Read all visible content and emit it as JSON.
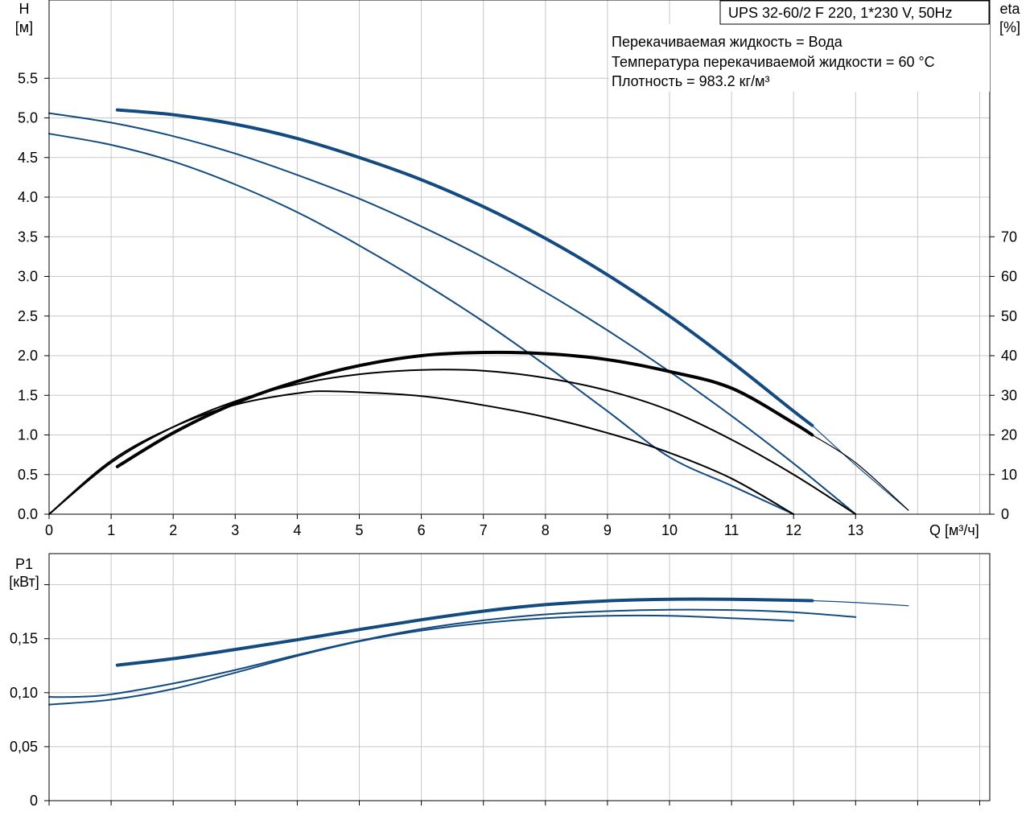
{
  "header": {
    "model": "UPS 32-60/2 F 220, 1*230 V, 50Hz",
    "info_lines": [
      "Перекачиваемая жидкость = Вода",
      "Температура перекачиваемой жидкости = 60 °C",
      "Плотность = 983.2 кг/м³"
    ]
  },
  "colors": {
    "pump": "#134a80",
    "eff": "#000000",
    "grid": "#c8c8c8"
  },
  "chart_data": [
    {
      "type": "line",
      "title": "",
      "xlabel": "Q [м³/ч]",
      "ylabel_name": "H",
      "ylabel_unit": "[м]",
      "y2label_name": "eta",
      "y2label_unit": "[%]",
      "xlim": [
        0,
        14.2
      ],
      "ylim": [
        0,
        6.0
      ],
      "y2lim": [
        0,
        120
      ],
      "grid": true,
      "x_ticks": [
        "0",
        "1",
        "2",
        "3",
        "4",
        "5",
        "6",
        "7",
        "8",
        "9",
        "10",
        "11",
        "12",
        "13"
      ],
      "y_ticks": [
        "0.0",
        "0.5",
        "1.0",
        "1.5",
        "2.0",
        "2.5",
        "3.0",
        "3.5",
        "4.0",
        "4.5",
        "5.0",
        "5.5"
      ],
      "y2_ticks": [
        "0",
        "10",
        "20",
        "30",
        "40",
        "50",
        "60",
        "70"
      ],
      "series": [
        {
          "kind": "head",
          "role": "main",
          "x": [
            1.1,
            2,
            3,
            4,
            5,
            6,
            7,
            8,
            9,
            10,
            11,
            12,
            12.3
          ],
          "y": [
            5.1,
            5.04,
            4.92,
            4.74,
            4.5,
            4.22,
            3.88,
            3.48,
            3.02,
            2.5,
            1.92,
            1.3,
            1.12
          ]
        },
        {
          "kind": "head",
          "role": "ext",
          "x": [
            12.3,
            13,
            13.85
          ],
          "y": [
            1.12,
            0.62,
            0.05
          ]
        },
        {
          "kind": "head",
          "role": "thin",
          "x": [
            0,
            1,
            2,
            3,
            4,
            5,
            6,
            7,
            8,
            9,
            10,
            11,
            12,
            13
          ],
          "y": [
            5.06,
            4.94,
            4.77,
            4.55,
            4.28,
            3.98,
            3.63,
            3.24,
            2.8,
            2.32,
            1.8,
            1.24,
            0.64,
            0.0
          ]
        },
        {
          "kind": "head",
          "role": "thin",
          "x": [
            0,
            1,
            2,
            3,
            4,
            5,
            6,
            7,
            8,
            9,
            10,
            11,
            12
          ],
          "y": [
            4.8,
            4.66,
            4.45,
            4.16,
            3.81,
            3.39,
            2.93,
            2.43,
            1.88,
            1.3,
            0.72,
            0.36,
            0.0
          ]
        },
        {
          "kind": "eta",
          "role": "main",
          "x": [
            1.1,
            2,
            3,
            4,
            5,
            6,
            7,
            8,
            9,
            10,
            11,
            12,
            12.3
          ],
          "y": [
            12,
            20.5,
            28,
            33.5,
            37.5,
            40,
            40.8,
            40.5,
            39,
            36,
            31.8,
            23,
            20
          ]
        },
        {
          "kind": "eta",
          "role": "ext",
          "x": [
            12.3,
            13,
            13.85
          ],
          "y": [
            20,
            13,
            1
          ]
        },
        {
          "kind": "eta",
          "role": "thin",
          "x": [
            0,
            1,
            2,
            3,
            4,
            5,
            6,
            7,
            8,
            9,
            10,
            11,
            12,
            13
          ],
          "y": [
            0,
            13,
            22,
            28.5,
            32.8,
            35.3,
            36.4,
            36.2,
            34.4,
            31.2,
            26.2,
            18.8,
            10,
            0
          ]
        },
        {
          "kind": "eta",
          "role": "thin",
          "x": [
            0,
            1,
            2,
            3,
            4,
            4.6,
            6,
            7,
            8,
            9,
            10,
            11,
            12
          ],
          "y": [
            0,
            13.5,
            22,
            27.6,
            30.5,
            31,
            29.8,
            27.5,
            24.5,
            20.5,
            15.5,
            9,
            0
          ]
        }
      ]
    },
    {
      "type": "line",
      "title": "",
      "xlabel": "",
      "ylabel_name": "P1",
      "ylabel_unit": "[кВт]",
      "xlim": [
        0,
        14.2
      ],
      "ylim": [
        0,
        0.2
      ],
      "grid": true,
      "y_ticks": [
        "0",
        "0,05",
        "0,10",
        "0,15"
      ],
      "series": [
        {
          "kind": "power",
          "role": "main",
          "x": [
            1.1,
            2,
            3,
            4,
            5,
            6,
            7,
            8,
            9,
            10,
            11,
            12,
            12.3
          ],
          "y": [
            0.1255,
            0.1315,
            0.14,
            0.149,
            0.1585,
            0.1675,
            0.1755,
            0.1815,
            0.185,
            0.1865,
            0.1865,
            0.1855,
            0.1852
          ]
        },
        {
          "kind": "power",
          "role": "ext",
          "x": [
            12.3,
            13,
            13.85
          ],
          "y": [
            0.1852,
            0.1835,
            0.1805
          ]
        },
        {
          "kind": "power",
          "role": "thin",
          "x": [
            0,
            0.5,
            1,
            2,
            3,
            4,
            5,
            6,
            7,
            8,
            9,
            10,
            11,
            12,
            13
          ],
          "y": [
            0.096,
            0.0962,
            0.0985,
            0.1085,
            0.121,
            0.135,
            0.148,
            0.159,
            0.167,
            0.1725,
            0.1755,
            0.1768,
            0.1765,
            0.1745,
            0.17
          ]
        },
        {
          "kind": "power",
          "role": "thin",
          "x": [
            0,
            1,
            2,
            3,
            4,
            5,
            6,
            7,
            8,
            9,
            10,
            11,
            12
          ],
          "y": [
            0.089,
            0.0935,
            0.1035,
            0.1185,
            0.134,
            0.1475,
            0.1575,
            0.1645,
            0.169,
            0.1712,
            0.1712,
            0.169,
            0.1665
          ]
        }
      ]
    }
  ]
}
